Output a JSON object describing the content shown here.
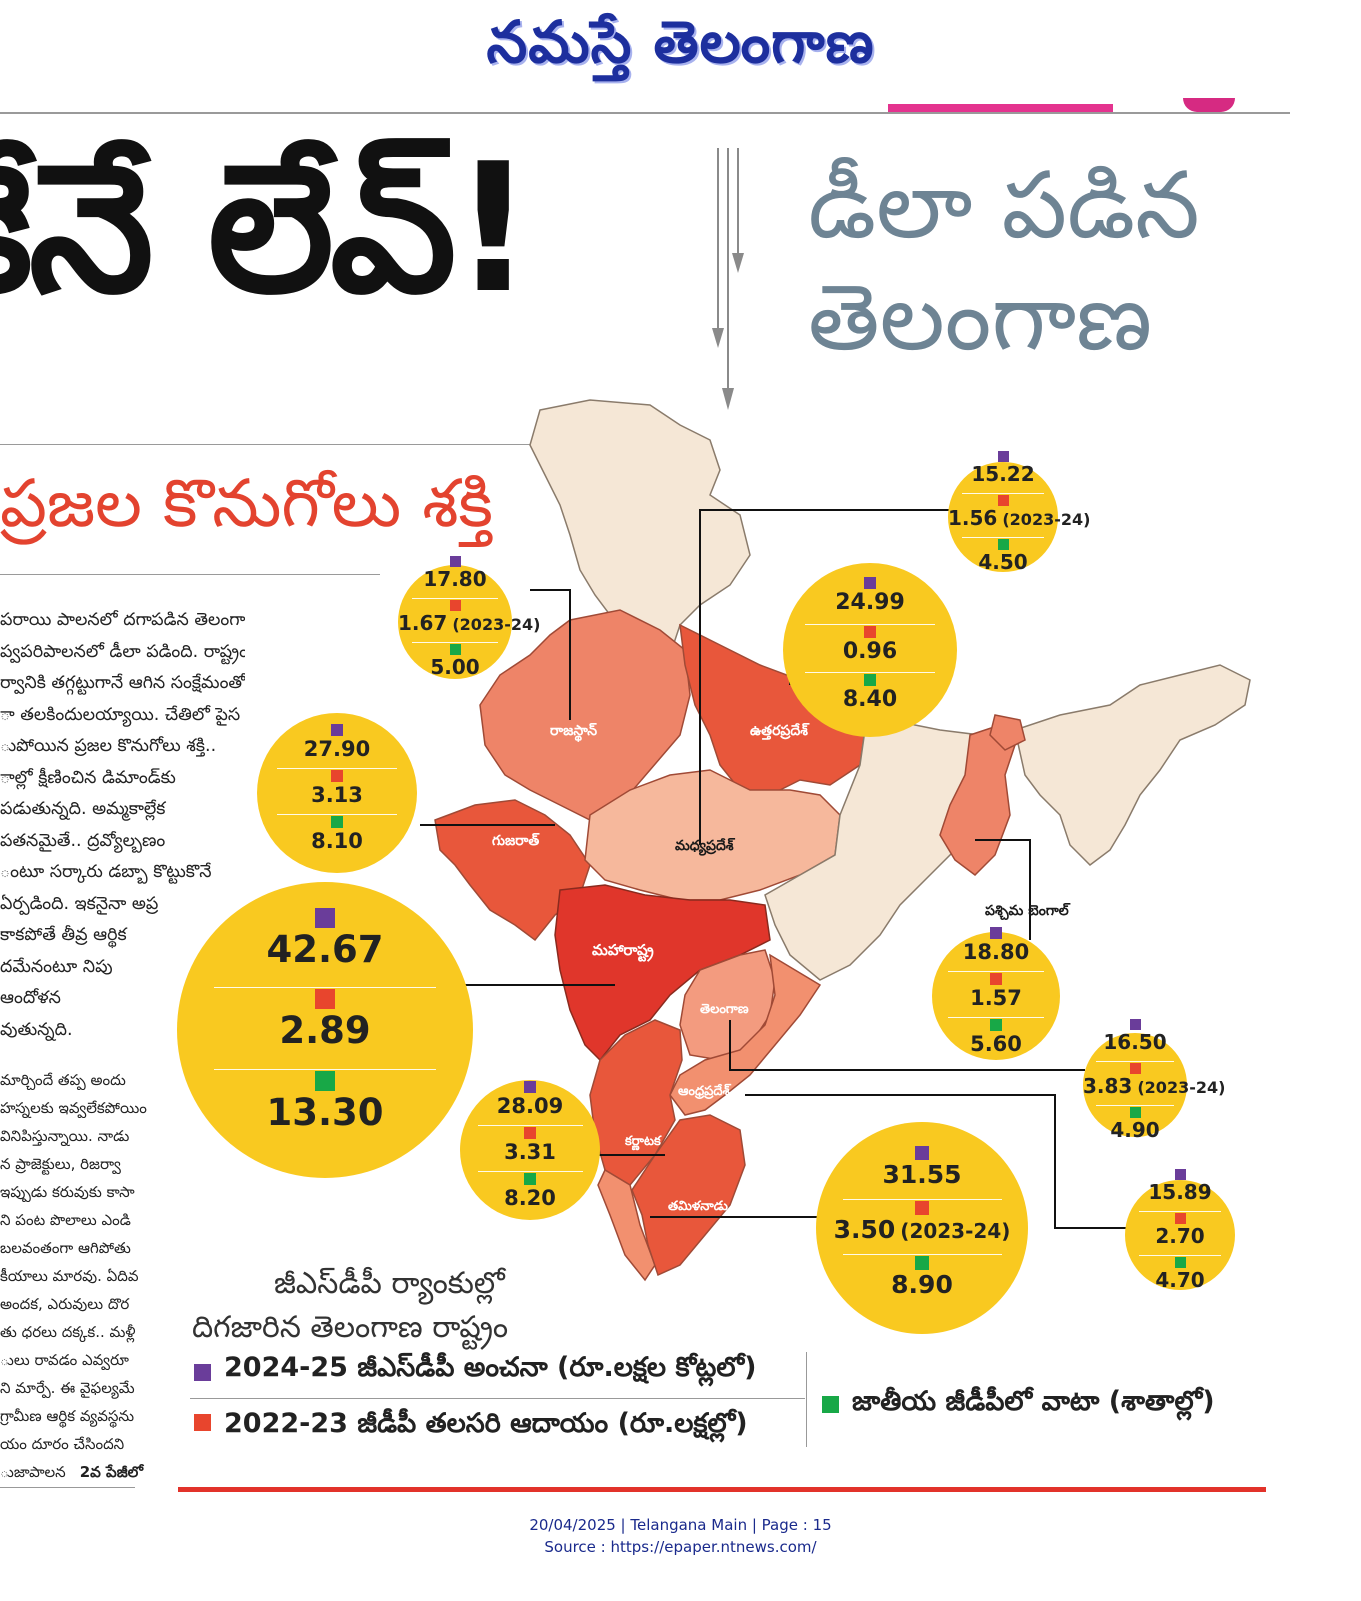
{
  "masthead": {
    "title": "నమస్తే తెలంగాణ"
  },
  "headline": {
    "text": "కేనే లేవ్!"
  },
  "deck": {
    "line1": "డీలా పడిన",
    "line2": "తెలంగాణ"
  },
  "subhead": {
    "text": "ప్రజల కొనుగోలు శక్తి"
  },
  "article": {
    "col1": [
      "పరాయి పాలనలో దగాపడిన తెలంగాణ..",
      "ప్వపరిపాలనలో డీలా పడింది. రాష్ట్రంలో మారిన",
      "ర్వానికి తగ్గట్టుగానే ఆగిన సంక్షేమంతో ఆర్థిక పరి",
      "ా తలకిందులయ్యాయి. చేతిలో పైస",
      "ుపోయిన ప్రజల కొనుగోలు శక్తి..",
      "ాల్లో క్షీణించిన డిమాండ్‌కు",
      "పడుతున్నది. అమ్మకాల్లేక",
      "పతనమైతే.. ద్రవ్యోల్బణం",
      "ంటూ సర్కారు డబ్బా కొట్టుకొనే",
      "ఏర్పడింది. ఇకనైనా అప్ర",
      "కాకపోతే తీవ్ర ఆర్థిక",
      "దమేనంటూ నిపు",
      "ఆందోళన",
      "వుతున్నది."
    ],
    "col2": [
      "మార్చిందే తప్ప అందు",
      "హస్నలకు ఇవ్వలేకపోయిం",
      "వినిపిస్తున్నాయి. నాడు",
      "న ప్రాజెక్టులు, రిజర్వా",
      "ఇప్పుడు కరువుకు కాసా",
      "ని పంట పొలాలు ఎండి",
      "బలవంతంగా ఆగిపోతు",
      "కీయాలు మారవు. ఏదివ",
      "అందక, ఎరువులు దొర",
      "తు ధరలు దక్కక.. మళ్లీ",
      "ులు రావడం ఎవ్వరూ",
      "ని మార్పే. ఈ వైఫల్యమే",
      "గ్రామీణ ఆర్థిక వ్యవస్థను",
      "యం దూరం చేసిందని",
      "ుజాపాలన"
    ],
    "more_link": "2వ పేజీలో"
  },
  "colors": {
    "circle": "#f9c920",
    "purple_marker": "#6a3d9a",
    "red_marker": "#e8452d",
    "green_marker": "#18a847",
    "deck": "#6e8494",
    "subhead": "#e3432f",
    "masthead": "#1d2f9e"
  },
  "map": {
    "states": {
      "rajasthan": "రాజస్థాన్",
      "uttar_pradesh": "ఉత్తరప్రదేశ్",
      "gujarat": "గుజరాత్",
      "madhya_pradesh": "మధ్యప్రదేశ్",
      "maharashtra": "మహారాష్ట్ర",
      "telangana": "తెలంగాణ",
      "andhra_pradesh": "ఆంధ్రప్రదేశ్",
      "karnataka": "కర్ణాటక",
      "tamil_nadu": "తమిళనాడు",
      "west_bengal": "పశ్చిమ బెంగాల్"
    },
    "bubbles": [
      {
        "state": "madhya_pradesh",
        "gsdp": "15.22",
        "income": "1.56",
        "income_note": "(2023-24)",
        "share": "4.50"
      },
      {
        "state": "rajasthan",
        "gsdp": "17.80",
        "income": "1.67",
        "income_note": "(2023-24)",
        "share": "5.00"
      },
      {
        "state": "uttar_pradesh",
        "gsdp": "24.99",
        "income": "0.96",
        "income_note": "",
        "share": "8.40"
      },
      {
        "state": "gujarat",
        "gsdp": "27.90",
        "income": "3.13",
        "income_note": "",
        "share": "8.10"
      },
      {
        "state": "maharashtra",
        "gsdp": "42.67",
        "income": "2.89",
        "income_note": "",
        "share": "13.30"
      },
      {
        "state": "west_bengal",
        "gsdp": "18.80",
        "income": "1.57",
        "income_note": "",
        "share": "5.60"
      },
      {
        "state": "telangana",
        "gsdp": "16.50",
        "income": "3.83",
        "income_note": "(2023-24)",
        "share": "4.90"
      },
      {
        "state": "karnataka",
        "gsdp": "28.09",
        "income": "3.31",
        "income_note": "",
        "share": "8.20"
      },
      {
        "state": "tamil_nadu",
        "gsdp": "31.55",
        "income": "3.50",
        "income_note": "(2023-24)",
        "share": "8.90"
      },
      {
        "state": "andhra_pradesh",
        "gsdp": "15.89",
        "income": "2.70",
        "income_note": "",
        "share": "4.70"
      }
    ]
  },
  "caption": {
    "line1": "జీఎస్‌డీపీ ర్యాంకుల్లో",
    "line2": "దిగజారిన తెలంగాణ రాష్ట్రం"
  },
  "legend": {
    "gsdp": "2024-25 జీఎస్‌డీపీ అంచనా (రూ.లక్షల కోట్లలో)",
    "income": "2022-23 జీడీపీ తలసరి ఆదాయం (రూ.లక్షల్లో)",
    "share": "జాతీయ జీడీపీలో వాటా (శాతాల్లో)"
  },
  "footer": {
    "line1": "20/04/2025 | Telangana Main | Page : 15",
    "line2": "Source : https://epaper.ntnews.com/"
  }
}
